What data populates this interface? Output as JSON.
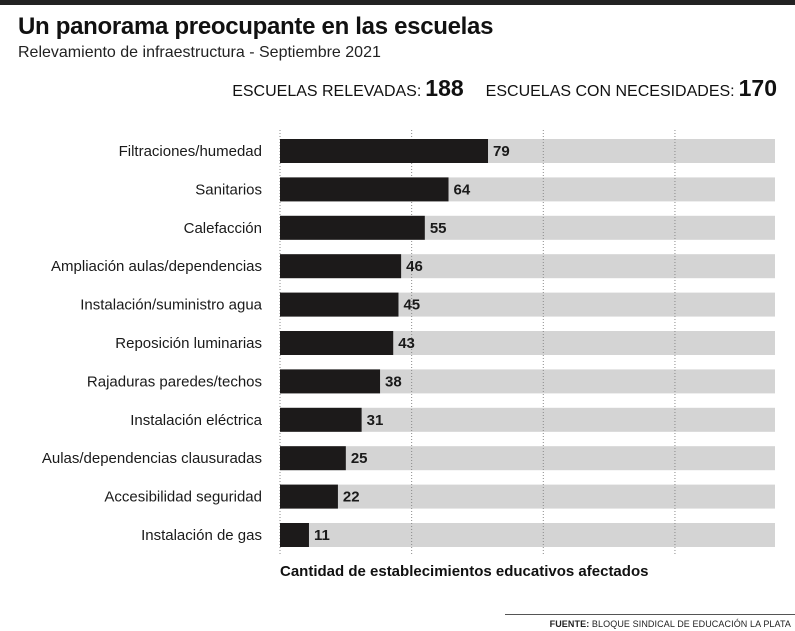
{
  "header": {
    "title": "Un panorama preocupante en las escuelas",
    "subtitle": "Relevamiento de infraestructura - Septiembre 2021"
  },
  "stats": {
    "surveyed_label": "ESCUELAS RELEVADAS:",
    "surveyed_value": "188",
    "needs_label": "ESCUELAS CON NECESIDADES:",
    "needs_value": "170"
  },
  "footer": {
    "source_label": "FUENTE:",
    "source_text": "BLOQUE SINDICAL DE EDUCACIÓN LA PLATA"
  },
  "chart_data": {
    "type": "bar",
    "orientation": "horizontal",
    "categories": [
      "Filtraciones/humedad",
      "Sanitarios",
      "Calefacción",
      "Ampliación aulas/dependencias",
      "Instalación/suministro agua",
      "Reposición luminarias",
      "Rajaduras paredes/techos",
      "Instalación eléctrica",
      "Aulas/dependencias clausuradas",
      "Accesibilidad seguridad",
      "Instalación de gas"
    ],
    "values": [
      79,
      64,
      55,
      46,
      45,
      43,
      38,
      31,
      25,
      22,
      11
    ],
    "xlabel": "Cantidad de establecimientos educativos afectados",
    "xlim": [
      0,
      188
    ],
    "grid": true,
    "colors": {
      "bar": "#1c1a1a",
      "track": "#d4d4d4",
      "grid": "#8a8a8a"
    }
  }
}
